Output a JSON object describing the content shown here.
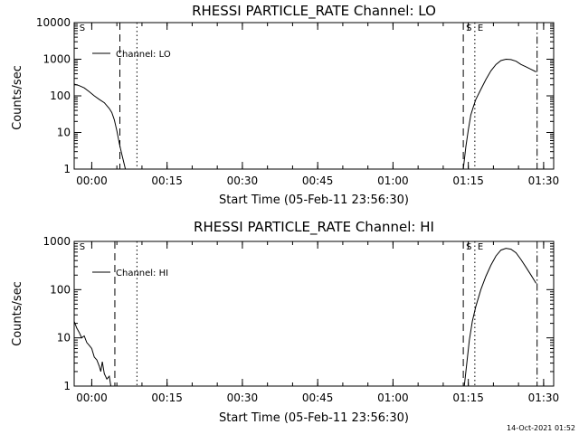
{
  "footer": {
    "timestamp": "14-Oct-2021 01:52"
  },
  "chart_data": [
    {
      "type": "line",
      "title": "RHESSI PARTICLE_RATE Channel: LO",
      "xlabel": "Start Time (05-Feb-11 23:56:30)",
      "ylabel": "Counts/sec",
      "yscale": "log",
      "xlim": [
        0,
        95.5
      ],
      "ylim": [
        1,
        10000
      ],
      "x_unit": "minutes after start",
      "xtick_labels": [
        "00:00",
        "00:15",
        "00:30",
        "00:45",
        "01:00",
        "01:15",
        "01:30"
      ],
      "xtick_values": [
        3.5,
        18.5,
        33.5,
        48.5,
        63.5,
        78.5,
        93.5
      ],
      "ytick_labels": [
        "1",
        "10",
        "100",
        "1000",
        "10000"
      ],
      "ytick_values": [
        1,
        10,
        100,
        1000,
        10000
      ],
      "legend": "top-left",
      "series": [
        {
          "name": "Channel: LO",
          "segments": [
            [
              [
                0,
                210
              ],
              [
                1,
                190
              ],
              [
                2,
                165
              ],
              [
                3,
                130
              ],
              [
                4,
                100
              ],
              [
                5,
                80
              ],
              [
                6,
                65
              ],
              [
                7,
                45
              ],
              [
                7.5,
                35
              ],
              [
                8,
                22
              ],
              [
                8.5,
                11
              ],
              [
                9,
                5
              ],
              [
                9.5,
                2.5
              ],
              [
                10,
                1.3
              ],
              [
                10.2,
                1
              ]
            ],
            [
              [
                77.5,
                1
              ],
              [
                78,
                4
              ],
              [
                78.5,
                12
              ],
              [
                79,
                30
              ],
              [
                79.5,
                50
              ],
              [
                80,
                80
              ],
              [
                81,
                150
              ],
              [
                82,
                280
              ],
              [
                83,
                480
              ],
              [
                84,
                720
              ],
              [
                85,
                920
              ],
              [
                86,
                1000
              ],
              [
                87,
                980
              ],
              [
                88,
                880
              ],
              [
                89,
                720
              ],
              [
                90,
                620
              ],
              [
                91,
                530
              ],
              [
                92,
                450
              ]
            ]
          ]
        }
      ],
      "markers": [
        {
          "label": "S",
          "x": 0.5,
          "style": "none"
        },
        {
          "label": "",
          "x": 9.1,
          "style": "dashed"
        },
        {
          "label": "",
          "x": 12.5,
          "style": "dotted"
        },
        {
          "label": "S",
          "x": 77.5,
          "style": "dashed"
        },
        {
          "label": "E",
          "x": 79.8,
          "style": "dotted"
        },
        {
          "label": "",
          "x": 92.2,
          "style": "dashdot"
        }
      ]
    },
    {
      "type": "line",
      "title": "RHESSI PARTICLE_RATE Channel: HI",
      "xlabel": "Start Time (05-Feb-11 23:56:30)",
      "ylabel": "Counts/sec",
      "yscale": "log",
      "xlim": [
        0,
        95.5
      ],
      "ylim": [
        1,
        1000
      ],
      "x_unit": "minutes after start",
      "xtick_labels": [
        "00:00",
        "00:15",
        "00:30",
        "00:45",
        "01:00",
        "01:15",
        "01:30"
      ],
      "xtick_values": [
        3.5,
        18.5,
        33.5,
        48.5,
        63.5,
        78.5,
        93.5
      ],
      "ytick_labels": [
        "1",
        "10",
        "100",
        "1000"
      ],
      "ytick_values": [
        1,
        10,
        100,
        1000
      ],
      "legend": "top-left",
      "series": [
        {
          "name": "Channel: HI",
          "segments": [
            [
              [
                0,
                22
              ],
              [
                0.5,
                16
              ],
              [
                1,
                13
              ],
              [
                1.5,
                10
              ],
              [
                2,
                11
              ],
              [
                2.5,
                8
              ],
              [
                3,
                7
              ],
              [
                3.5,
                6
              ],
              [
                4,
                4
              ],
              [
                4.5,
                3.5
              ],
              [
                5,
                2.6
              ],
              [
                5.3,
                2
              ],
              [
                5.6,
                3.2
              ],
              [
                6,
                1.8
              ],
              [
                6.5,
                1.4
              ],
              [
                7,
                1.6
              ],
              [
                7.3,
                1
              ]
            ],
            [
              [
                77.7,
                1
              ],
              [
                78.2,
                3
              ],
              [
                78.7,
                9
              ],
              [
                79.3,
                22
              ],
              [
                80,
                45
              ],
              [
                81,
                100
              ],
              [
                82,
                190
              ],
              [
                83,
                320
              ],
              [
                84,
                500
              ],
              [
                85,
                660
              ],
              [
                86,
                720
              ],
              [
                87,
                690
              ],
              [
                88,
                580
              ],
              [
                89,
                420
              ],
              [
                90,
                290
              ],
              [
                91,
                200
              ],
              [
                92,
                135
              ]
            ]
          ]
        }
      ],
      "markers": [
        {
          "label": "S",
          "x": 0.5,
          "style": "none"
        },
        {
          "label": "",
          "x": 8.1,
          "style": "dashed"
        },
        {
          "label": "",
          "x": 12.5,
          "style": "dotted"
        },
        {
          "label": "S",
          "x": 77.5,
          "style": "dashed"
        },
        {
          "label": "E",
          "x": 79.8,
          "style": "dotted"
        },
        {
          "label": "",
          "x": 92.2,
          "style": "dashdot"
        }
      ]
    }
  ]
}
